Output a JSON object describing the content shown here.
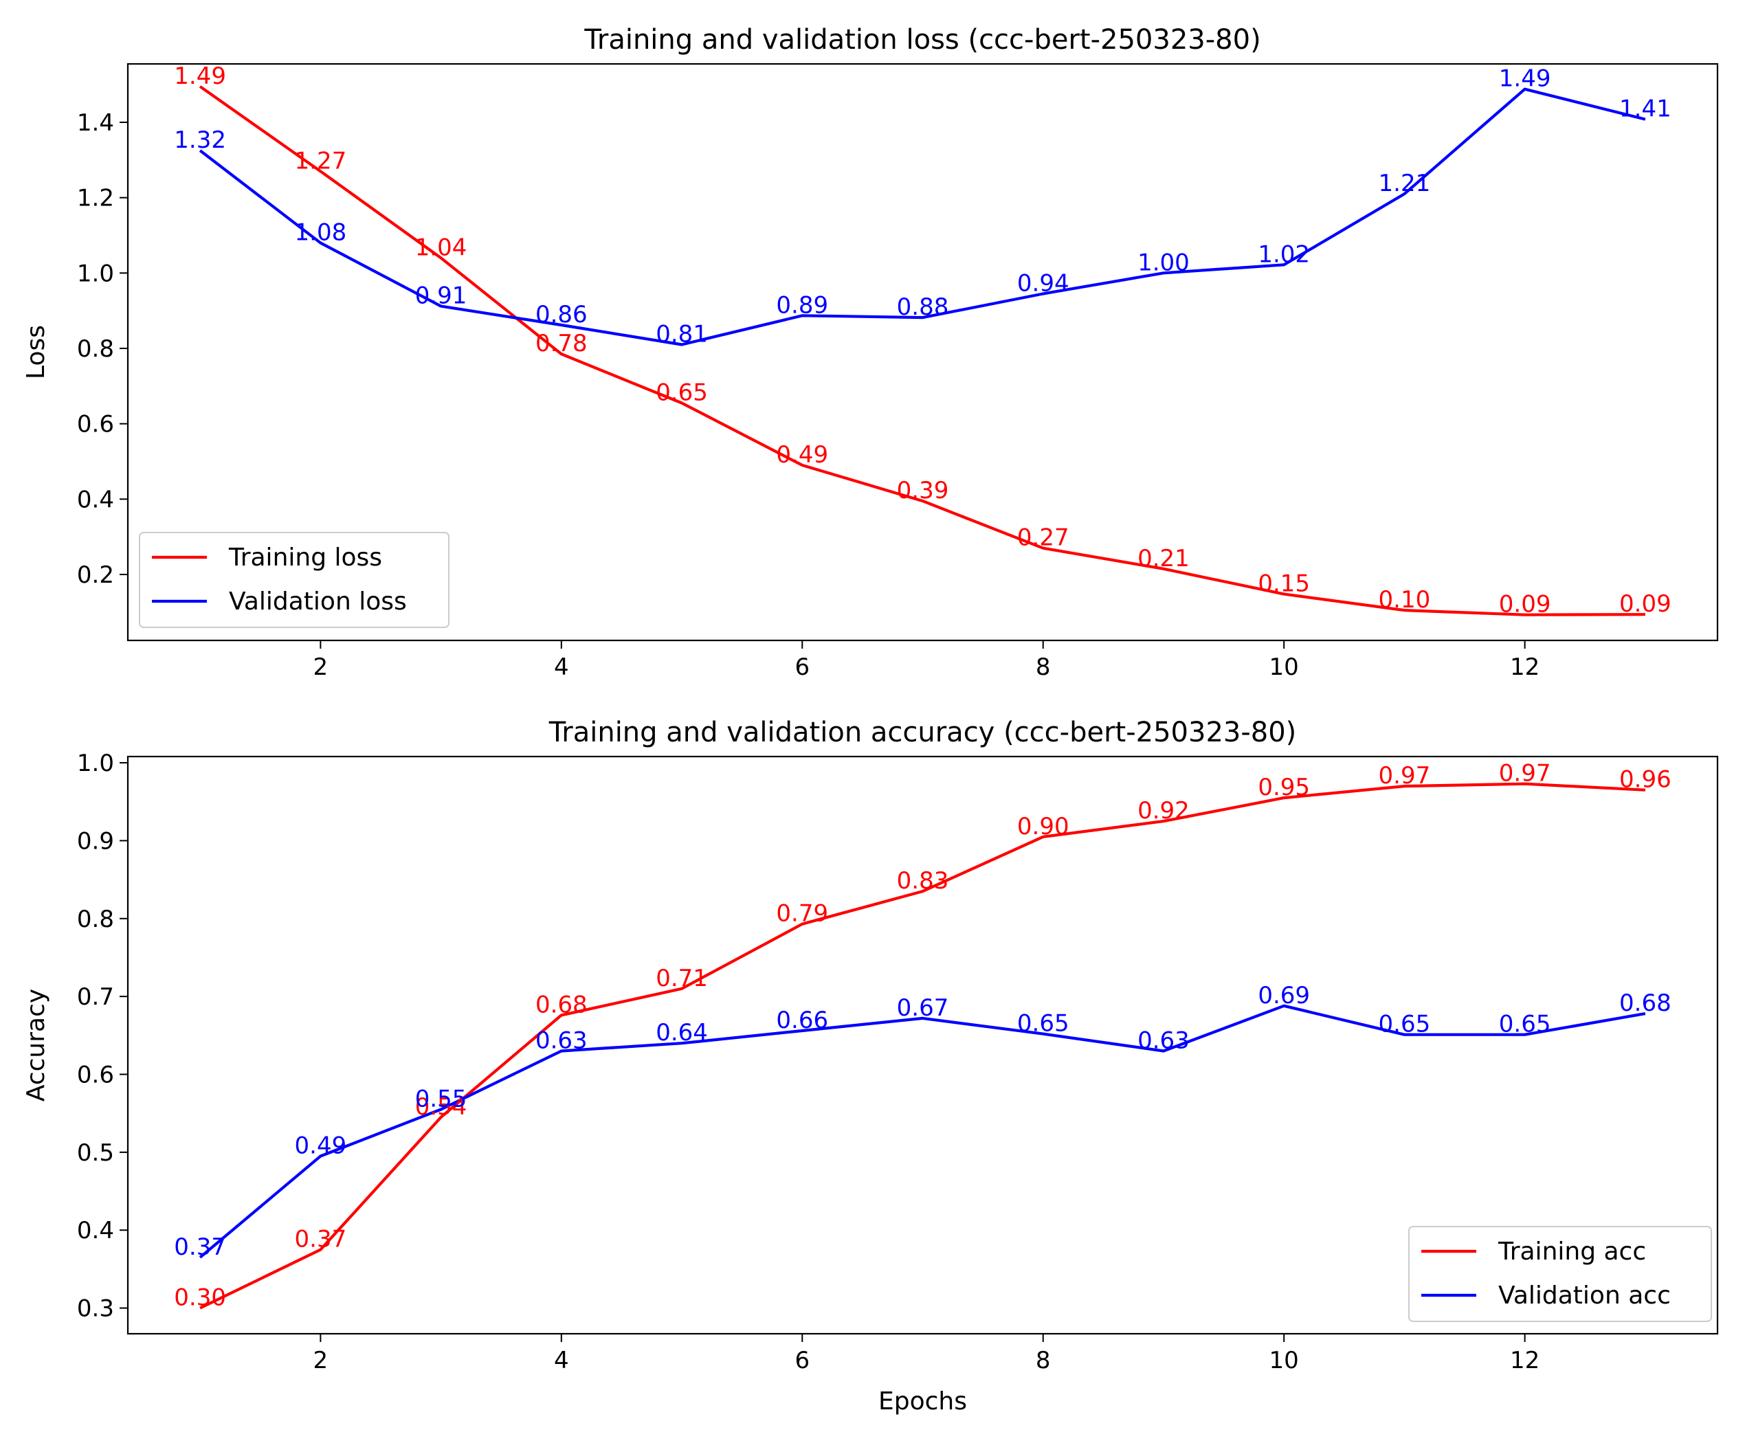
{
  "colors": {
    "train": "#ff0000",
    "val": "#0000ff",
    "axis": "#000000",
    "legend_border": "#cccccc"
  },
  "chart_data": [
    {
      "type": "line",
      "title": "Training and validation loss (ccc-bert-250323-80)",
      "xlabel": "",
      "ylabel": "Loss",
      "x": [
        1,
        2,
        3,
        4,
        5,
        6,
        7,
        8,
        9,
        10,
        11,
        12,
        13
      ],
      "xlim": [
        0.4,
        13.6
      ],
      "ylim": [
        0.025,
        1.555
      ],
      "xticks": [
        2,
        4,
        6,
        8,
        10,
        12
      ],
      "yticks": [
        0.2,
        0.4,
        0.6,
        0.8,
        1.0,
        1.2,
        1.4
      ],
      "ytick_decimals": 1,
      "grid": false,
      "legend_position": "lower-left",
      "series": [
        {
          "name": "Training loss",
          "color": "#ff0000",
          "values": [
            1.495,
            1.27,
            1.04,
            0.785,
            0.655,
            0.49,
            0.395,
            0.27,
            0.215,
            0.148,
            0.105,
            0.093,
            0.094
          ],
          "labels": [
            "1.49",
            "1.27",
            "1.04",
            "0.78",
            "0.65",
            "0.49",
            "0.39",
            "0.27",
            "0.21",
            "0.15",
            "0.10",
            "0.09",
            "0.09"
          ]
        },
        {
          "name": "Validation loss",
          "color": "#0000ff",
          "values": [
            1.325,
            1.08,
            0.912,
            0.862,
            0.81,
            0.887,
            0.882,
            0.945,
            1.0,
            1.022,
            1.21,
            1.488,
            1.408
          ],
          "labels": [
            "1.32",
            "1.08",
            "0.91",
            "0.86",
            "0.81",
            "0.89",
            "0.88",
            "0.94",
            "1.00",
            "1.02",
            "1.21",
            "1.49",
            "1.41"
          ]
        }
      ]
    },
    {
      "type": "line",
      "title": "Training and validation accuracy (ccc-bert-250323-80)",
      "xlabel": "Epochs",
      "ylabel": "Accuracy",
      "x": [
        1,
        2,
        3,
        4,
        5,
        6,
        7,
        8,
        9,
        10,
        11,
        12,
        13
      ],
      "xlim": [
        0.4,
        13.6
      ],
      "ylim": [
        0.267,
        1.008
      ],
      "xticks": [
        2,
        4,
        6,
        8,
        10,
        12
      ],
      "yticks": [
        0.3,
        0.4,
        0.5,
        0.6,
        0.7,
        0.8,
        0.9,
        1.0
      ],
      "ytick_decimals": 1,
      "grid": false,
      "legend_position": "lower-right",
      "series": [
        {
          "name": "Training acc",
          "color": "#ff0000",
          "values": [
            0.3,
            0.375,
            0.545,
            0.676,
            0.71,
            0.793,
            0.835,
            0.905,
            0.925,
            0.955,
            0.97,
            0.973,
            0.965
          ],
          "labels": [
            "0.30",
            "0.37",
            "0.54",
            "0.68",
            "0.71",
            "0.79",
            "0.83",
            "0.90",
            "0.92",
            "0.95",
            "0.97",
            "0.97",
            "0.96"
          ]
        },
        {
          "name": "Validation acc",
          "color": "#0000ff",
          "values": [
            0.365,
            0.495,
            0.555,
            0.63,
            0.64,
            0.656,
            0.672,
            0.652,
            0.63,
            0.688,
            0.651,
            0.651,
            0.678
          ],
          "labels": [
            "0.37",
            "0.49",
            "0.55",
            "0.63",
            "0.64",
            "0.66",
            "0.67",
            "0.65",
            "0.63",
            "0.69",
            "0.65",
            "0.65",
            "0.68"
          ]
        }
      ]
    }
  ]
}
